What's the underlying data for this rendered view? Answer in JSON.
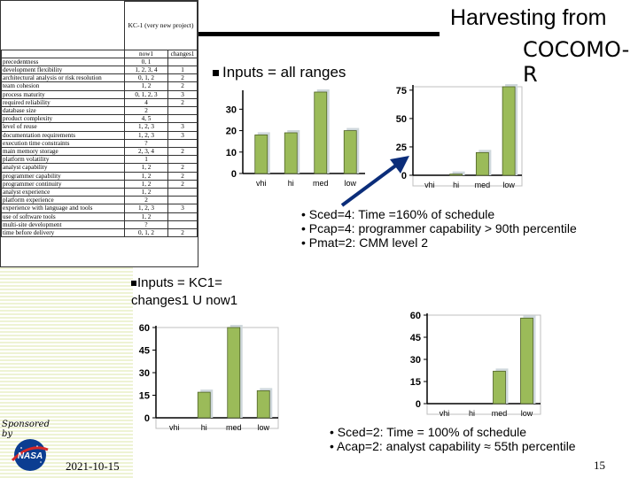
{
  "slide": {
    "title_line1": "Harvesting from",
    "title_line2": "COCOMO-R",
    "bullet_inputs_all": "Inputs = all ranges",
    "bullet_inputs_kc1_line1": "Inputs = KC1=",
    "bullet_inputs_kc1_line2": "changes1 U now1",
    "notes_top": [
      "• Sced=4: Time =160% of schedule",
      "• Pcap=4: programmer capability > 90th percentile",
      "• Pmat=2: CMM level 2"
    ],
    "notes_bottom": [
      "• Sced=2: Time = 100% of schedule",
      "• Acap=2: analyst capability ≈ 55th percentile"
    ],
    "sponsor_label": "Sponsored by",
    "nasa_logo_text": "NASA",
    "date": "2021-10-15",
    "page_number": "15",
    "accent_color": "#0b2d7a"
  },
  "table": {
    "header_title": "KC-1 (very new project)",
    "col_headers": [
      "",
      "now1",
      "changes1"
    ],
    "rows": [
      [
        "precedentness",
        "0, 1",
        ""
      ],
      [
        "development flexibility",
        "1, 2, 3, 4",
        "1"
      ],
      [
        "architectural analysis or risk resolution",
        "0, 1, 2",
        "2"
      ],
      [
        "team cohesion",
        "1, 2",
        "2"
      ],
      [
        "process maturity",
        "0, 1, 2, 3",
        "3"
      ],
      [
        "required reliability",
        "4",
        "2"
      ],
      [
        "database size",
        "2",
        ""
      ],
      [
        "product complexity",
        "4, 5",
        ""
      ],
      [
        "level of reuse",
        "1, 2, 3",
        "3"
      ],
      [
        "documentation requirements",
        "1, 2, 3",
        "3"
      ],
      [
        "execution time constraints",
        "?",
        ""
      ],
      [
        "main memory storage",
        "2, 3, 4",
        "2"
      ],
      [
        "platform volatility",
        "1",
        ""
      ],
      [
        "analyst capability",
        "1, 2",
        "2"
      ],
      [
        "programmer capability",
        "1, 2",
        "2"
      ],
      [
        "programmer continuity",
        "1, 2",
        "2"
      ],
      [
        "analyst experience",
        "1, 2",
        ""
      ],
      [
        "platform experience",
        "2",
        ""
      ],
      [
        "experience with language and tools",
        "1, 2, 3",
        "3"
      ],
      [
        "use of software tools",
        "1, 2",
        ""
      ],
      [
        "multi-site development",
        "?",
        ""
      ],
      [
        "time before delivery",
        "0, 1, 2",
        "2"
      ]
    ]
  },
  "chart_data": [
    {
      "type": "bar",
      "categories": [
        "vhi",
        "hi",
        "med",
        "low"
      ],
      "values": [
        18,
        19,
        38,
        20
      ],
      "yticks": [
        0,
        10,
        20,
        30
      ],
      "ylim": [
        0,
        38
      ],
      "color": "#9bbb59"
    },
    {
      "type": "bar",
      "categories": [
        "vhi",
        "hi",
        "med",
        "low"
      ],
      "values": [
        0,
        1,
        20,
        78
      ],
      "yticks": [
        0,
        25,
        50,
        75
      ],
      "ylim": [
        0,
        78
      ],
      "color": "#9bbb59"
    },
    {
      "type": "bar",
      "categories": [
        "vhi",
        "hi",
        "med",
        "low"
      ],
      "values": [
        0,
        17,
        60,
        18
      ],
      "yticks": [
        0,
        15,
        30,
        45,
        60
      ],
      "ylim": [
        0,
        60
      ],
      "color": "#9bbb59"
    },
    {
      "type": "bar",
      "categories": [
        "vhi",
        "hi",
        "med",
        "low"
      ],
      "values": [
        0,
        0,
        22,
        58
      ],
      "yticks": [
        0,
        15,
        30,
        45,
        60
      ],
      "ylim": [
        0,
        60
      ],
      "color": "#9bbb59"
    }
  ]
}
